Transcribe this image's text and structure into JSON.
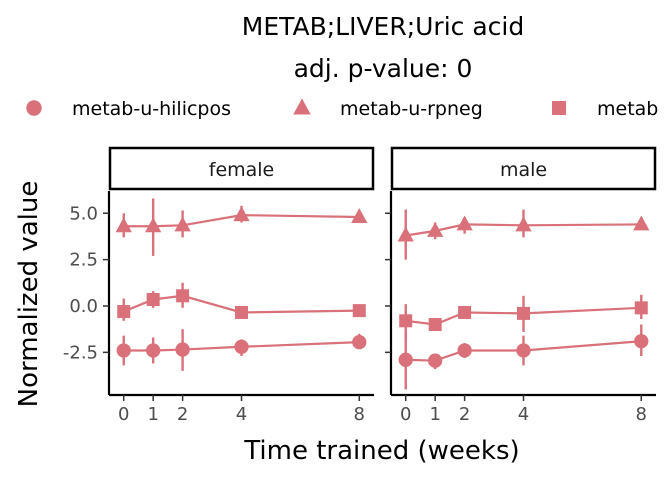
{
  "chart_data": {
    "type": "line",
    "title": "METAB;LIVER;Uric acid",
    "subtitle": "adj. p-value: 0",
    "xlabel": "Time trained (weeks)",
    "ylabel": "Normalized value",
    "color": "#D9707A",
    "x_ticks": [
      0,
      1,
      2,
      4,
      8
    ],
    "x_tick_labels": [
      "0",
      "1",
      "2",
      "4",
      "8"
    ],
    "xlim": [
      -0.5,
      8.5
    ],
    "y_ticks": [
      -2.5,
      0,
      2.5,
      5
    ],
    "y_tick_labels": [
      "-2.5",
      "0.0",
      "2.5",
      "5.0"
    ],
    "ylim": [
      -4.8,
      6.2
    ],
    "legend": {
      "placement": "top",
      "entries": [
        {
          "label": "metab-u-hilicpos",
          "shape": "circle"
        },
        {
          "label": "metab-u-rpneg",
          "shape": "triangle"
        },
        {
          "label": "metab",
          "shape": "square"
        }
      ]
    },
    "panels": [
      {
        "label": "female",
        "series": [
          {
            "shape": "circle",
            "x": [
              0,
              1,
              2,
              4,
              8
            ],
            "y": [
              -2.4,
              -2.4,
              -2.35,
              -2.2,
              -1.95
            ],
            "lo": [
              -3.2,
              -3.1,
              -3.5,
              -2.7,
              -2.3
            ],
            "hi": [
              -1.6,
              -1.7,
              -1.25,
              -1.8,
              -1.5
            ]
          },
          {
            "shape": "triangle",
            "x": [
              0,
              1,
              2,
              4,
              8
            ],
            "y": [
              4.3,
              4.3,
              4.35,
              4.9,
              4.8
            ],
            "lo": [
              3.7,
              2.7,
              3.7,
              4.5,
              4.55
            ],
            "hi": [
              5.0,
              5.8,
              5.15,
              5.4,
              5.0
            ]
          },
          {
            "shape": "square",
            "x": [
              0,
              1,
              2,
              4,
              8
            ],
            "y": [
              -0.3,
              0.35,
              0.55,
              -0.35,
              -0.25
            ],
            "lo": [
              -0.8,
              -0.1,
              -0.1,
              -0.5,
              -0.5
            ],
            "hi": [
              0.4,
              0.8,
              1.25,
              -0.15,
              0.0
            ]
          }
        ]
      },
      {
        "label": "male",
        "series": [
          {
            "shape": "circle",
            "x": [
              0,
              1,
              2,
              4,
              8
            ],
            "y": [
              -2.9,
              -2.95,
              -2.4,
              -2.4,
              -1.9
            ],
            "lo": [
              -4.5,
              -3.4,
              -2.8,
              -3.2,
              -2.7
            ],
            "hi": [
              -1.4,
              -2.6,
              -2.0,
              -1.6,
              -1.0
            ]
          },
          {
            "shape": "triangle",
            "x": [
              0,
              1,
              2,
              4,
              8
            ],
            "y": [
              3.8,
              4.05,
              4.4,
              4.35,
              4.4
            ],
            "lo": [
              2.5,
              3.6,
              3.9,
              3.7,
              4.1
            ],
            "hi": [
              5.2,
              4.5,
              4.8,
              5.2,
              4.75
            ]
          },
          {
            "shape": "square",
            "x": [
              0,
              1,
              2,
              4,
              8
            ],
            "y": [
              -0.8,
              -1.0,
              -0.35,
              -0.4,
              -0.1
            ],
            "lo": [
              -1.8,
              -1.2,
              -0.55,
              -1.4,
              -0.7
            ],
            "hi": [
              0.1,
              -0.7,
              -0.15,
              0.55,
              0.6
            ]
          }
        ]
      }
    ]
  }
}
